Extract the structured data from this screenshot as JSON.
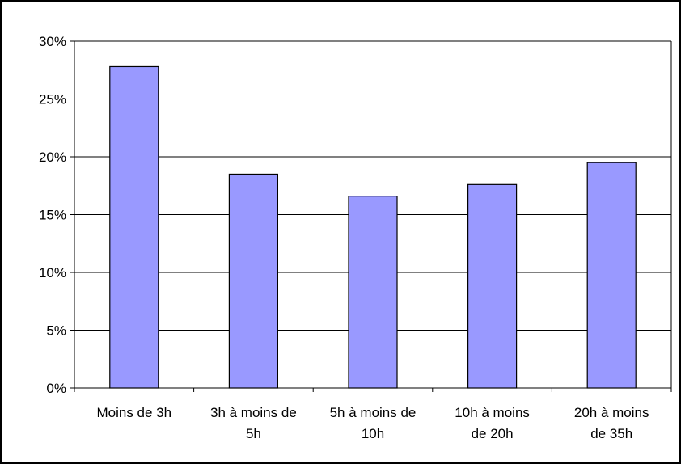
{
  "chart_data": {
    "type": "bar",
    "title": "",
    "xlabel": "",
    "ylabel": "",
    "categories": [
      [
        "Moins de 3h"
      ],
      [
        "3h à moins de",
        "5h"
      ],
      [
        "5h à moins de",
        "10h"
      ],
      [
        "10h à moins",
        "de 20h"
      ],
      [
        "20h à moins",
        "de 35h"
      ]
    ],
    "values": [
      27.8,
      18.5,
      16.6,
      17.6,
      19.5
    ],
    "ylim": [
      0,
      30
    ],
    "yticks": [
      0,
      5,
      10,
      15,
      20,
      25,
      30
    ],
    "ytick_labels": [
      "0%",
      "5%",
      "10%",
      "15%",
      "20%",
      "25%",
      "30%"
    ],
    "grid": true,
    "legend": "none",
    "bar_color": "#9999ff",
    "bar_edge_color": "#000000",
    "grid_color": "#000000"
  }
}
